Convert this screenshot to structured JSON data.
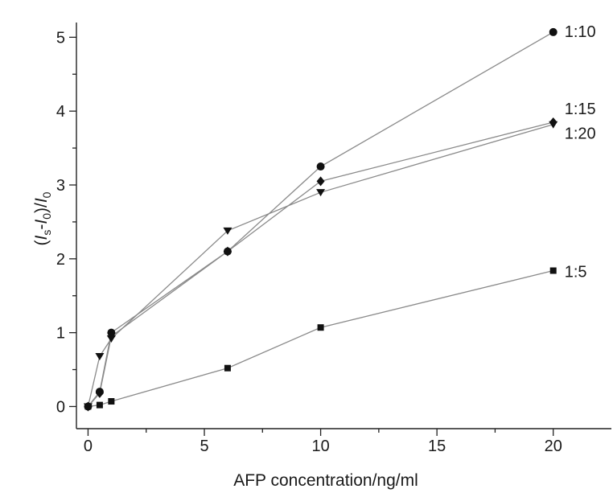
{
  "chart_data": {
    "type": "line",
    "xlabel": "AFP concentration/ng/ml",
    "ylabel": "(Is-I0)/I0",
    "ylabel_parts": {
      "open": "(",
      "var1": "I",
      "sub1": "s",
      "minus": "-",
      "var2": "I",
      "sub2": "0",
      "close": ")/",
      "var3": "I",
      "sub3": "0"
    },
    "xlim": [
      -0.5,
      22.5
    ],
    "ylim": [
      -0.3,
      5.2
    ],
    "x_ticks": [
      0,
      5,
      10,
      15,
      20
    ],
    "y_ticks": [
      0,
      1,
      2,
      3,
      4,
      5
    ],
    "series": [
      {
        "name": "1:10",
        "marker": "circle",
        "x": [
          0,
          0.5,
          1,
          6,
          10,
          20
        ],
        "y": [
          0.0,
          0.2,
          1.0,
          2.1,
          3.25,
          5.07
        ]
      },
      {
        "name": "1:15",
        "marker": "diamond",
        "x": [
          0,
          0.5,
          1,
          6,
          10,
          20
        ],
        "y": [
          0.0,
          0.18,
          0.95,
          2.1,
          3.05,
          3.85
        ]
      },
      {
        "name": "1:20",
        "marker": "triangle-down",
        "x": [
          0,
          0.5,
          1,
          6,
          10,
          20
        ],
        "y": [
          0.0,
          0.68,
          0.92,
          2.38,
          2.9,
          3.82
        ]
      },
      {
        "name": "1:5",
        "marker": "square",
        "x": [
          0,
          0.5,
          1,
          6,
          10,
          20
        ],
        "y": [
          0.0,
          0.02,
          0.07,
          0.52,
          1.07,
          1.84
        ]
      }
    ],
    "series_label_positions": [
      "right-of-last-point"
    ]
  }
}
